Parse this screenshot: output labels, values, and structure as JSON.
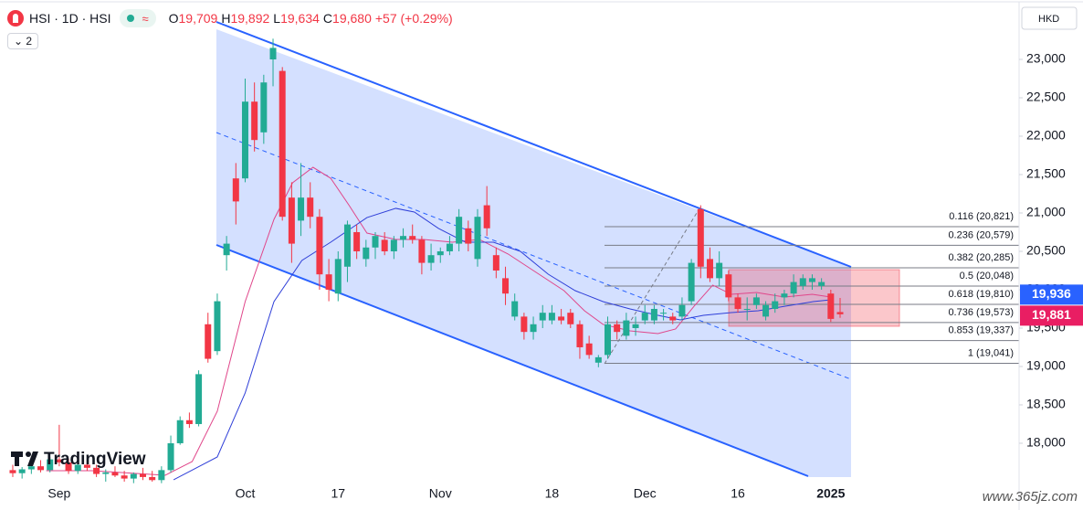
{
  "chart_data": {
    "type": "candlestick",
    "categories": [
      null,
      null,
      null,
      null,
      null,
      "Sep",
      null,
      null,
      null,
      null,
      null,
      null,
      null,
      null,
      null,
      null,
      null,
      null,
      null,
      null,
      null,
      null,
      null,
      null,
      null,
      "Oct",
      null,
      null,
      null,
      null,
      null,
      null,
      null,
      null,
      null,
      "17",
      null,
      null,
      null,
      null,
      null,
      null,
      null,
      null,
      null,
      null,
      "Nov",
      null,
      null,
      null,
      null,
      null,
      null,
      null,
      null,
      null,
      null,
      null,
      "18",
      null,
      null,
      null,
      null,
      null,
      null,
      null,
      null,
      null,
      "Dec",
      null,
      null,
      null,
      null,
      null,
      null,
      null,
      null,
      null,
      "16",
      null,
      null,
      null,
      null,
      null,
      null,
      null,
      null,
      null,
      "2025",
      null
    ],
    "open": [
      17650,
      17610,
      17660,
      17700,
      17650,
      17790,
      17750,
      17640,
      17720,
      17680,
      17600,
      17620,
      17580,
      17540,
      17600,
      17560,
      17520,
      17650,
      18000,
      18300,
      18250,
      19550,
      19200,
      20450,
      21450,
      21450,
      22450,
      22050,
      23000,
      22850,
      21200,
      20900,
      21200,
      20950,
      20200,
      19950,
      20300,
      20750,
      20400,
      20550,
      20650,
      20500,
      20650,
      20700,
      20650,
      20350,
      20450,
      20500,
      20600,
      20800,
      20400,
      21100,
      20450,
      20150,
      19650,
      19650,
      19450,
      19600,
      19600,
      19650,
      19700,
      19550,
      19300,
      19050,
      19150,
      19550,
      19400,
      19500,
      19600,
      19600,
      19700,
      19650,
      19650,
      19850,
      21050,
      20400,
      20150,
      20200,
      19900,
      19750,
      19800,
      19650,
      19750,
      19900,
      19950,
      20050,
      20100,
      20050,
      19950,
      19709
    ],
    "high": [
      17720,
      17690,
      17760,
      17780,
      17820,
      18240,
      17800,
      17760,
      17790,
      17720,
      17660,
      17700,
      17640,
      17620,
      17680,
      17640,
      17700,
      18100,
      18350,
      18400,
      18950,
      19700,
      19950,
      20700,
      21650,
      22750,
      22700,
      22800,
      23270,
      22900,
      21400,
      21650,
      21400,
      21050,
      20400,
      20500,
      20900,
      20850,
      20650,
      20750,
      20750,
      20700,
      20800,
      20850,
      20700,
      20600,
      20550,
      20700,
      21050,
      20900,
      21050,
      21350,
      20550,
      20300,
      19950,
      19700,
      19650,
      19800,
      19800,
      19750,
      19750,
      19600,
      19400,
      19150,
      19650,
      19600,
      19700,
      19650,
      19800,
      19800,
      19750,
      19700,
      19900,
      20400,
      21100,
      20550,
      20500,
      20250,
      19950,
      19900,
      19950,
      19850,
      19950,
      20000,
      20200,
      20200,
      20200,
      20150,
      20000,
      19892
    ],
    "low": [
      17560,
      17540,
      17600,
      17620,
      17620,
      17700,
      17600,
      17600,
      17640,
      17560,
      17500,
      17560,
      17500,
      17480,
      17520,
      17500,
      17480,
      17620,
      17980,
      18200,
      18220,
      19050,
      19150,
      20250,
      20850,
      21400,
      21800,
      21900,
      22650,
      20900,
      20350,
      20700,
      20800,
      20000,
      19850,
      19850,
      20100,
      20400,
      20300,
      20400,
      20450,
      20400,
      20550,
      20600,
      20200,
      20250,
      20350,
      20450,
      20500,
      20500,
      20300,
      20700,
      20150,
      19800,
      19600,
      19350,
      19350,
      19500,
      19550,
      19550,
      19500,
      19100,
      19100,
      18990,
      19100,
      19350,
      19350,
      19400,
      19550,
      19550,
      19600,
      19550,
      19600,
      19800,
      20150,
      20100,
      20050,
      19850,
      19700,
      19600,
      19750,
      19600,
      19700,
      19800,
      19900,
      20000,
      20000,
      20000,
      19580,
      19634
    ],
    "close": [
      17610,
      17660,
      17700,
      17650,
      17790,
      17750,
      17640,
      17720,
      17680,
      17600,
      17620,
      17580,
      17540,
      17600,
      17560,
      17520,
      17650,
      18000,
      18300,
      18250,
      18900,
      19100,
      19850,
      20600,
      21150,
      22450,
      21950,
      22700,
      23150,
      20950,
      20600,
      21200,
      20950,
      20200,
      20000,
      20400,
      20850,
      20500,
      20550,
      20700,
      20500,
      20650,
      20700,
      20650,
      20350,
      20450,
      20500,
      20600,
      20950,
      20600,
      20950,
      20800,
      20250,
      19950,
      19850,
      19450,
      19550,
      19700,
      19700,
      19600,
      19550,
      19250,
      19150,
      19120,
      19550,
      19450,
      19600,
      19550,
      19700,
      19750,
      19700,
      19600,
      19800,
      20350,
      20300,
      20150,
      20350,
      19900,
      19750,
      19750,
      19900,
      19800,
      19850,
      19950,
      20100,
      20150,
      20150,
      20100,
      19620,
      19680
    ],
    "up_color": "#22ab94",
    "down_color": "#f23645",
    "overlays": [
      {
        "color": "#e0468a",
        "x": [
          3.6,
          8.5,
          16.4,
          19.3,
          22,
          25,
          28.1,
          30.1,
          32.3,
          34.2,
          36.2,
          38.1,
          41.2,
          44.2,
          47.3,
          50.2,
          53.3,
          56.3,
          59.3,
          61.5,
          63.5,
          66.4,
          69.4,
          71.3,
          73.3,
          75.3,
          77.3,
          80,
          83,
          86,
          88
        ],
        "values": [
          17643,
          17643,
          17583,
          17762,
          18417,
          19845,
          20917,
          21393,
          21595,
          21452,
          21095,
          20738,
          20655,
          20655,
          20619,
          20655,
          20464,
          20226,
          19988,
          19726,
          19548,
          19464,
          19429,
          19488,
          19786,
          20060,
          19940,
          19964,
          19905,
          19940,
          19905
        ]
      },
      {
        "color": "#2f3fd8",
        "x": [
          17.3,
          22,
          25,
          28.1,
          31.1,
          34.2,
          38.1,
          41.2,
          43.2,
          45.8,
          48.7,
          51.7,
          54.6,
          57.6,
          60.5,
          63.5,
          66.4,
          69.4,
          71.8,
          74.3,
          77.3,
          80.2,
          83.1,
          86.1,
          88
        ],
        "values": [
          17524,
          17821,
          18655,
          19845,
          20381,
          20619,
          20940,
          21060,
          21012,
          20798,
          20619,
          20619,
          20500,
          20202,
          19988,
          19845,
          19750,
          19667,
          19607,
          19667,
          19702,
          19726,
          19786,
          19845,
          19869
        ]
      }
    ],
    "fib_levels": [
      {
        "value": 20821,
        "label": "0.116 (20,821)"
      },
      {
        "value": 20579,
        "label": "0.236 (20,579)"
      },
      {
        "value": 20285,
        "label": "0.382 (20,285)"
      },
      {
        "value": 20048,
        "label": "0.5 (20,048)"
      },
      {
        "value": 19810,
        "label": "0.618 (19,810)"
      },
      {
        "value": 19573,
        "label": "0.736 (19,573)"
      },
      {
        "value": 19337,
        "label": "0.853 (19,337)"
      },
      {
        "value": 19041,
        "label": "1 (19,041)"
      }
    ],
    "price_tags": [
      {
        "value": 19936,
        "label": "19,936",
        "color": "#2962ff"
      },
      {
        "value": 19881,
        "label": "19,881",
        "color": "#e91e63"
      }
    ],
    "ylim": [
      17440,
      23774
    ],
    "yticks": [
      {
        "value": 18000,
        "label": "18,000"
      },
      {
        "value": 18500,
        "label": "18,500"
      },
      {
        "value": 19000,
        "label": "19,000"
      },
      {
        "value": 19500,
        "label": "19,500"
      },
      {
        "value": 20000,
        "label": "20,000"
      },
      {
        "value": 20500,
        "label": "20,500"
      },
      {
        "value": 21000,
        "label": "21,000"
      },
      {
        "value": 21500,
        "label": "21,500"
      },
      {
        "value": 22000,
        "label": "22,000"
      },
      {
        "value": 22500,
        "label": "22,500"
      },
      {
        "value": 23000,
        "label": "23,000"
      }
    ],
    "grid": false,
    "currency": "HKD"
  },
  "header": {
    "symbol": "HSI · 1D · HSI",
    "ohlc": [
      [
        "O",
        "19,709"
      ],
      [
        "H",
        "19,892"
      ],
      [
        "L",
        "19,634"
      ],
      [
        "C",
        "19,680"
      ]
    ],
    "change": "+57 (+0.29%)",
    "indicator_count": "2"
  },
  "branding": {
    "logo": "TradingView",
    "watermark": "www.365jz.com"
  }
}
